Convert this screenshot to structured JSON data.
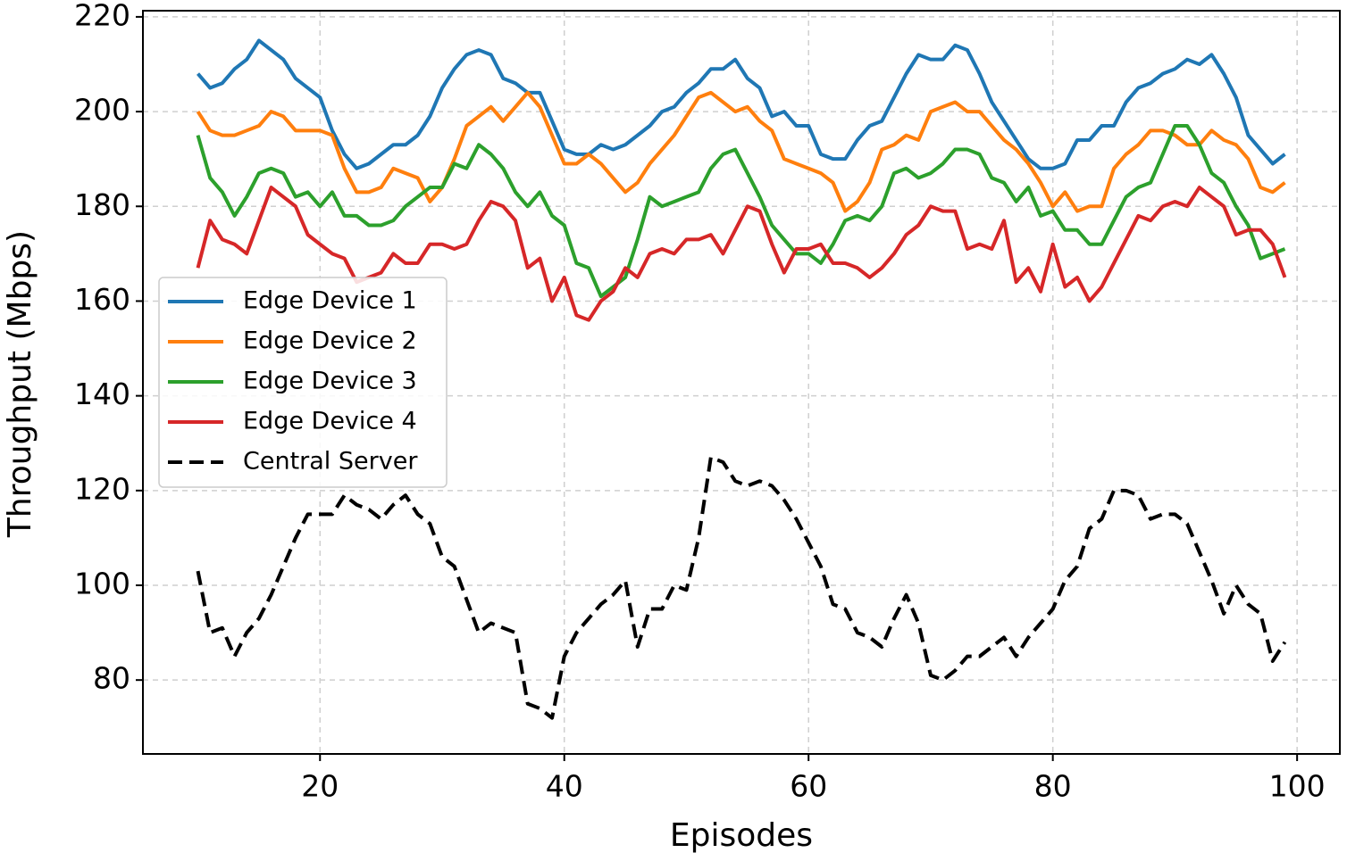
{
  "chart_data": {
    "type": "line",
    "xlabel": "Episodes",
    "ylabel": "Throughput (Mbps)",
    "x": [
      10,
      11,
      12,
      13,
      14,
      15,
      16,
      17,
      18,
      19,
      20,
      21,
      22,
      23,
      24,
      25,
      26,
      27,
      28,
      29,
      30,
      31,
      32,
      33,
      34,
      35,
      36,
      37,
      38,
      39,
      40,
      41,
      42,
      43,
      44,
      45,
      46,
      47,
      48,
      49,
      50,
      51,
      52,
      53,
      54,
      55,
      56,
      57,
      58,
      59,
      60,
      61,
      62,
      63,
      64,
      65,
      66,
      67,
      68,
      69,
      70,
      71,
      72,
      73,
      74,
      75,
      76,
      77,
      78,
      79,
      80,
      81,
      82,
      83,
      84,
      85,
      86,
      87,
      88,
      89,
      90,
      91,
      92,
      93,
      94,
      95,
      96,
      97,
      98,
      99
    ],
    "series": [
      {
        "name": "Edge Device 1",
        "color": "#1f77b4",
        "style": "solid",
        "values": [
          208,
          205,
          206,
          209,
          211,
          215,
          213,
          211,
          207,
          205,
          203,
          196,
          191,
          188,
          189,
          191,
          193,
          193,
          195,
          199,
          205,
          209,
          212,
          213,
          212,
          207,
          206,
          204,
          204,
          198,
          192,
          191,
          191,
          193,
          192,
          193,
          195,
          197,
          200,
          201,
          204,
          206,
          209,
          209,
          211,
          207,
          205,
          199,
          200,
          197,
          197,
          191,
          190,
          190,
          194,
          197,
          198,
          203,
          208,
          212,
          211,
          211,
          214,
          213,
          208,
          202,
          198,
          194,
          190,
          188,
          188,
          189,
          194,
          194,
          197,
          197,
          202,
          205,
          206,
          208,
          209,
          211,
          210,
          212,
          208,
          203,
          195,
          192,
          189,
          191
        ]
      },
      {
        "name": "Edge Device 2",
        "color": "#ff7f0e",
        "style": "solid",
        "values": [
          200,
          196,
          195,
          195,
          196,
          197,
          200,
          199,
          196,
          196,
          196,
          195,
          188,
          183,
          183,
          184,
          188,
          187,
          186,
          181,
          184,
          190,
          197,
          199,
          201,
          198,
          201,
          204,
          201,
          195,
          189,
          189,
          191,
          189,
          186,
          183,
          185,
          189,
          192,
          195,
          199,
          203,
          204,
          202,
          200,
          201,
          198,
          196,
          190,
          189,
          188,
          187,
          185,
          179,
          181,
          185,
          192,
          193,
          195,
          194,
          200,
          201,
          202,
          200,
          200,
          197,
          194,
          192,
          189,
          185,
          180,
          183,
          179,
          180,
          180,
          188,
          191,
          193,
          196,
          196,
          195,
          193,
          193,
          196,
          194,
          193,
          190,
          184,
          183,
          185
        ]
      },
      {
        "name": "Edge Device 3",
        "color": "#2ca02c",
        "style": "solid",
        "values": [
          195,
          186,
          183,
          178,
          182,
          187,
          188,
          187,
          182,
          183,
          180,
          183,
          178,
          178,
          176,
          176,
          177,
          180,
          182,
          184,
          184,
          189,
          188,
          193,
          191,
          188,
          183,
          180,
          183,
          178,
          176,
          168,
          167,
          161,
          163,
          165,
          173,
          182,
          180,
          181,
          182,
          183,
          188,
          191,
          192,
          187,
          182,
          176,
          173,
          170,
          170,
          168,
          172,
          177,
          178,
          177,
          180,
          187,
          188,
          186,
          187,
          189,
          192,
          192,
          191,
          186,
          185,
          181,
          184,
          178,
          179,
          175,
          175,
          172,
          172,
          177,
          182,
          184,
          185,
          191,
          197,
          197,
          193,
          187,
          185,
          180,
          176,
          169,
          170,
          171
        ]
      },
      {
        "name": "Edge Device 4",
        "color": "#d62728",
        "style": "solid",
        "values": [
          167,
          177,
          173,
          172,
          170,
          177,
          184,
          182,
          180,
          174,
          172,
          170,
          169,
          164,
          165,
          166,
          170,
          168,
          168,
          172,
          172,
          171,
          172,
          177,
          181,
          180,
          177,
          167,
          169,
          160,
          165,
          157,
          156,
          160,
          162,
          167,
          165,
          170,
          171,
          170,
          173,
          173,
          174,
          170,
          175,
          180,
          179,
          172,
          166,
          171,
          171,
          172,
          168,
          168,
          167,
          165,
          167,
          170,
          174,
          176,
          180,
          179,
          179,
          171,
          172,
          171,
          177,
          164,
          167,
          162,
          172,
          163,
          165,
          160,
          163,
          168,
          173,
          178,
          177,
          180,
          181,
          180,
          184,
          182,
          180,
          174,
          175,
          175,
          172,
          165
        ]
      },
      {
        "name": "Central Server",
        "color": "#000000",
        "style": "dashed",
        "values": [
          103,
          90,
          91,
          85,
          90,
          93,
          98,
          104,
          110,
          115,
          115,
          115,
          119,
          117,
          116,
          114,
          117,
          119,
          115,
          113,
          106,
          104,
          97,
          90,
          92,
          91,
          90,
          75,
          74,
          72,
          85,
          90,
          93,
          96,
          98,
          101,
          87,
          95,
          95,
          100,
          99,
          110,
          127,
          126,
          122,
          121,
          122,
          121,
          118,
          114,
          109,
          104,
          96,
          95,
          90,
          89,
          87,
          93,
          98,
          92,
          81,
          80,
          82,
          85,
          85,
          87,
          89,
          85,
          89,
          92,
          95,
          101,
          104,
          112,
          114,
          120,
          120,
          119,
          114,
          115,
          115,
          113,
          107,
          101,
          94,
          100,
          96,
          94,
          84,
          88
        ]
      }
    ],
    "xlim": [
      5.5,
      103.5
    ],
    "xticks": [
      20,
      40,
      60,
      80,
      100
    ],
    "ylim": [
      64.4,
      221.3
    ],
    "yticks": [
      80,
      100,
      120,
      140,
      160,
      180,
      200,
      220
    ],
    "grid": true,
    "legend": "center left"
  }
}
